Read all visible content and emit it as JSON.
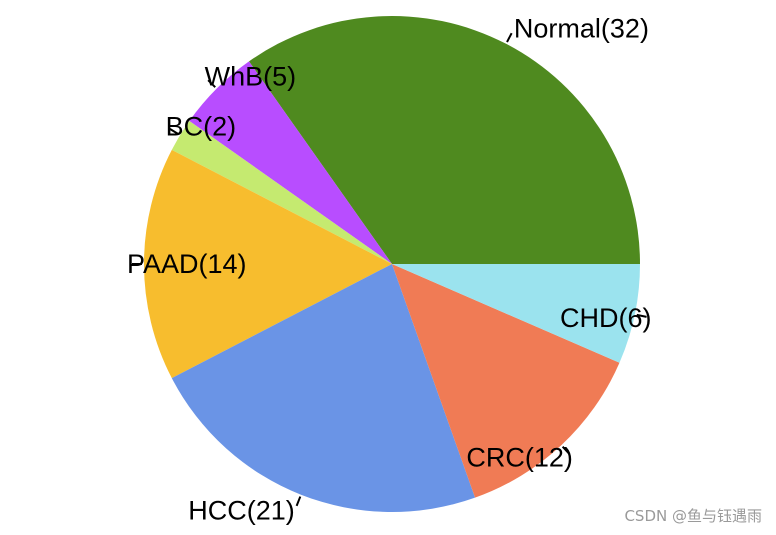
{
  "chart_data": {
    "type": "pie",
    "title": "",
    "slices": [
      {
        "label": "Normal(32)",
        "value": 32,
        "color": "#4f8a1f"
      },
      {
        "label": "WhB(5)",
        "value": 5,
        "color": "#b84dff"
      },
      {
        "label": "BC(2)",
        "value": 2,
        "color": "#c5ea70"
      },
      {
        "label": "PAAD(14)",
        "value": 14,
        "color": "#f7bd2e"
      },
      {
        "label": "HCC(21)",
        "value": 21,
        "color": "#6a94e6"
      },
      {
        "label": "CRC(12)",
        "value": 12,
        "color": "#f07b55"
      },
      {
        "label": "CHD(6)",
        "value": 6,
        "color": "#9be3ee"
      }
    ],
    "start": "3 o'clock",
    "direction": "counterclockwise"
  },
  "watermark": "CSDN @鱼与钰遇雨"
}
